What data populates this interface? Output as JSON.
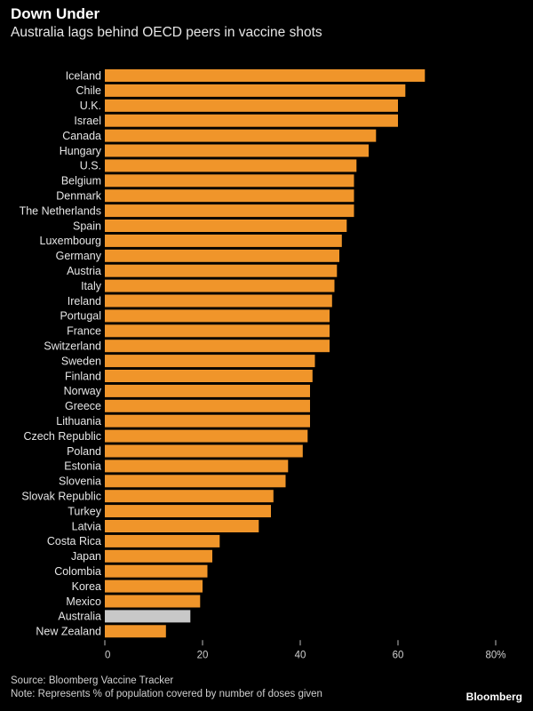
{
  "chart_data": {
    "type": "bar",
    "orientation": "horizontal",
    "title": "Down Under",
    "subtitle": "Australia lags behind OECD peers in vaccine shots",
    "categories": [
      "Iceland",
      "Chile",
      "U.K.",
      "Israel",
      "Canada",
      "Hungary",
      "U.S.",
      "Belgium",
      "Denmark",
      "The Netherlands",
      "Spain",
      "Luxembourg",
      "Germany",
      "Austria",
      "Italy",
      "Ireland",
      "Portugal",
      "France",
      "Switzerland",
      "Sweden",
      "Finland",
      "Norway",
      "Greece",
      "Lithuania",
      "Czech Republic",
      "Poland",
      "Estonia",
      "Slovenia",
      "Slovak Republic",
      "Turkey",
      "Latvia",
      "Costa Rica",
      "Japan",
      "Colombia",
      "Korea",
      "Mexico",
      "Australia",
      "New Zealand"
    ],
    "values": [
      65.5,
      61.5,
      60.0,
      60.0,
      55.5,
      54.0,
      51.5,
      51.0,
      51.0,
      51.0,
      49.5,
      48.5,
      48.0,
      47.5,
      47.0,
      46.5,
      46.0,
      46.0,
      46.0,
      43.0,
      42.5,
      42.0,
      42.0,
      42.0,
      41.5,
      40.5,
      37.5,
      37.0,
      34.5,
      34.0,
      31.5,
      23.5,
      22.0,
      21.0,
      20.0,
      19.5,
      17.5,
      12.5
    ],
    "highlight": "Australia",
    "xlim": [
      0,
      80
    ],
    "xticks": [
      "0",
      "20",
      "40",
      "60",
      "80%"
    ],
    "xtick_values": [
      0,
      20,
      40,
      60,
      80
    ],
    "grid": false,
    "colors": {
      "bar": "#f0952a",
      "highlight": "#c8c8c8",
      "tick": "#bbbbbb"
    }
  },
  "footer": {
    "source": "Source: Bloomberg Vaccine Tracker",
    "note": "Note: Represents % of population covered by number of doses given",
    "brand": "Bloomberg"
  }
}
